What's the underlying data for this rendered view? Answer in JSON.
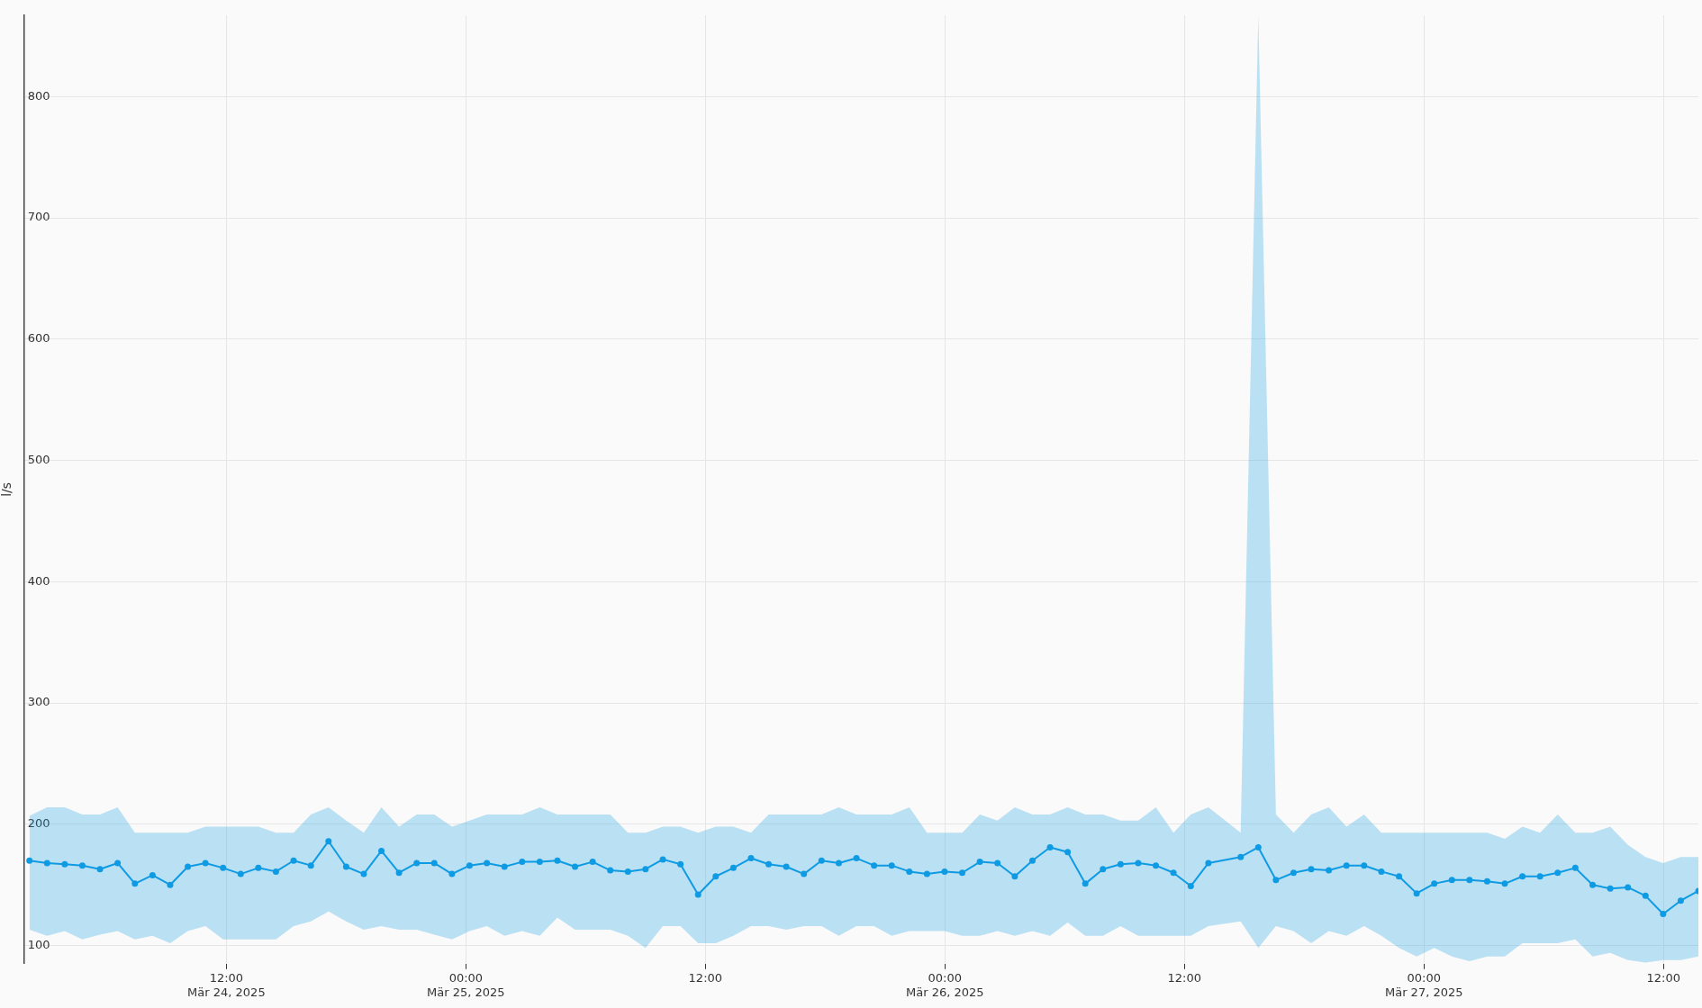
{
  "chart_data": {
    "type": "line",
    "ylabel": "l/s",
    "xlim": [
      "2025-03-24T01:52",
      "2025-03-27T13:45"
    ],
    "xticks": [
      {
        "value": "2025-03-24T12:00",
        "label": "12:00\nMär 24, 2025"
      },
      {
        "value": "2025-03-25T00:00",
        "label": "00:00\nMär 25, 2025"
      },
      {
        "value": "2025-03-25T12:00",
        "label": "12:00"
      },
      {
        "value": "2025-03-26T00:00",
        "label": "00:00\nMär 26, 2025"
      },
      {
        "value": "2025-03-26T12:00",
        "label": "12:00"
      },
      {
        "value": "2025-03-27T00:00",
        "label": "00:00\nMär 27, 2025"
      },
      {
        "value": "2025-03-27T12:00",
        "label": "12:00"
      }
    ],
    "ylim": [
      85,
      867
    ],
    "yticks": [
      100,
      200,
      300,
      400,
      500,
      600,
      700,
      800
    ],
    "x": [
      "2025-03-24T02:08",
      "2025-03-24T03:01",
      "2025-03-24T03:54",
      "2025-03-24T04:47",
      "2025-03-24T05:40",
      "2025-03-24T06:33",
      "2025-03-24T07:25",
      "2025-03-24T08:18",
      "2025-03-24T09:11",
      "2025-03-24T10:04",
      "2025-03-24T10:57",
      "2025-03-24T11:50",
      "2025-03-24T12:43",
      "2025-03-24T13:36",
      "2025-03-24T14:29",
      "2025-03-24T15:22",
      "2025-03-24T16:14",
      "2025-03-24T17:07",
      "2025-03-24T18:00",
      "2025-03-24T18:53",
      "2025-03-24T19:46",
      "2025-03-24T20:39",
      "2025-03-24T21:32",
      "2025-03-24T22:25",
      "2025-03-24T23:18",
      "2025-03-25T00:11",
      "2025-03-25T01:03",
      "2025-03-25T01:56",
      "2025-03-25T02:49",
      "2025-03-25T03:42",
      "2025-03-25T04:35",
      "2025-03-25T05:28",
      "2025-03-25T06:21",
      "2025-03-25T07:14",
      "2025-03-25T08:07",
      "2025-03-25T09:00",
      "2025-03-25T09:52",
      "2025-03-25T10:45",
      "2025-03-25T11:38",
      "2025-03-25T12:31",
      "2025-03-25T13:24",
      "2025-03-25T14:17",
      "2025-03-25T15:10",
      "2025-03-25T16:03",
      "2025-03-25T16:56",
      "2025-03-25T17:49",
      "2025-03-25T18:41",
      "2025-03-25T19:34",
      "2025-03-25T20:27",
      "2025-03-25T21:20",
      "2025-03-25T22:13",
      "2025-03-25T23:06",
      "2025-03-25T23:59",
      "2025-03-26T00:52",
      "2025-03-26T01:45",
      "2025-03-26T02:38",
      "2025-03-26T03:30",
      "2025-03-26T04:23",
      "2025-03-26T05:16",
      "2025-03-26T06:09",
      "2025-03-26T07:02",
      "2025-03-26T07:55",
      "2025-03-26T08:48",
      "2025-03-26T09:41",
      "2025-03-26T10:34",
      "2025-03-26T11:27",
      "2025-03-26T12:19",
      "2025-03-26T13:12",
      "2025-03-26T14:49",
      "2025-03-26T15:42",
      "2025-03-26T16:35",
      "2025-03-26T17:28",
      "2025-03-26T18:21",
      "2025-03-26T19:14",
      "2025-03-26T20:07",
      "2025-03-26T21:00",
      "2025-03-26T21:52",
      "2025-03-26T22:45",
      "2025-03-26T23:38",
      "2025-03-27T00:31",
      "2025-03-27T01:24",
      "2025-03-27T02:17",
      "2025-03-27T03:10",
      "2025-03-27T04:03",
      "2025-03-27T04:56",
      "2025-03-27T05:49",
      "2025-03-27T06:42",
      "2025-03-27T07:35",
      "2025-03-27T08:27",
      "2025-03-27T09:20",
      "2025-03-27T10:13",
      "2025-03-27T11:06",
      "2025-03-27T11:59",
      "2025-03-27T12:52",
      "2025-03-27T13:45"
    ],
    "series": [
      {
        "color": "#0f9be3",
        "values": [
          170,
          168,
          167,
          166,
          163,
          168,
          151,
          158,
          150,
          165,
          168,
          164,
          159,
          164,
          161,
          170,
          166,
          186,
          165,
          159,
          178,
          160,
          168,
          168,
          159,
          166,
          168,
          165,
          169,
          169,
          170,
          165,
          169,
          162,
          161,
          163,
          171,
          167,
          142,
          157,
          164,
          172,
          167,
          165,
          159,
          170,
          168,
          172,
          166,
          166,
          161,
          159,
          161,
          160,
          169,
          168,
          157,
          170,
          181,
          177,
          151,
          163,
          167,
          168,
          166,
          160,
          149,
          168,
          173,
          181,
          154,
          160,
          163,
          162,
          166,
          166,
          161,
          157,
          143,
          151,
          154,
          154,
          153,
          151,
          157,
          157,
          160,
          164,
          150,
          147,
          148,
          141,
          126,
          137,
          145
        ],
        "lower": [
          113,
          108,
          112,
          105,
          109,
          112,
          105,
          108,
          102,
          112,
          116,
          105,
          105,
          105,
          105,
          116,
          120,
          128,
          120,
          113,
          116,
          113,
          113,
          109,
          105,
          112,
          116,
          108,
          112,
          108,
          123,
          113,
          113,
          113,
          108,
          98,
          116,
          116,
          102,
          102,
          108,
          116,
          116,
          113,
          116,
          116,
          108,
          116,
          116,
          108,
          112,
          112,
          112,
          108,
          108,
          112,
          108,
          112,
          108,
          119,
          108,
          108,
          116,
          108,
          108,
          108,
          108,
          116,
          120,
          98,
          116,
          112,
          102,
          112,
          108,
          116,
          108,
          98,
          91,
          98,
          91,
          87,
          91,
          91,
          102,
          102,
          102,
          105,
          91,
          94,
          88,
          86,
          88,
          88,
          91
        ],
        "upper": [
          207,
          214,
          214,
          208,
          208,
          214,
          193,
          193,
          193,
          193,
          198,
          198,
          198,
          198,
          193,
          193,
          208,
          214,
          203,
          193,
          214,
          198,
          208,
          208,
          198,
          203,
          208,
          208,
          208,
          214,
          208,
          208,
          208,
          208,
          193,
          193,
          198,
          198,
          193,
          198,
          198,
          193,
          208,
          208,
          208,
          208,
          214,
          208,
          208,
          208,
          214,
          193,
          193,
          193,
          208,
          203,
          214,
          208,
          208,
          214,
          208,
          208,
          203,
          203,
          214,
          193,
          208,
          214,
          193,
          867,
          208,
          193,
          208,
          214,
          198,
          208,
          193,
          193,
          193,
          193,
          193,
          193,
          193,
          188,
          198,
          193,
          208,
          193,
          193,
          198,
          183,
          173,
          168,
          173,
          173
        ]
      }
    ],
    "grid": true,
    "legend": false,
    "marker": "circle",
    "line_style": "solid"
  }
}
